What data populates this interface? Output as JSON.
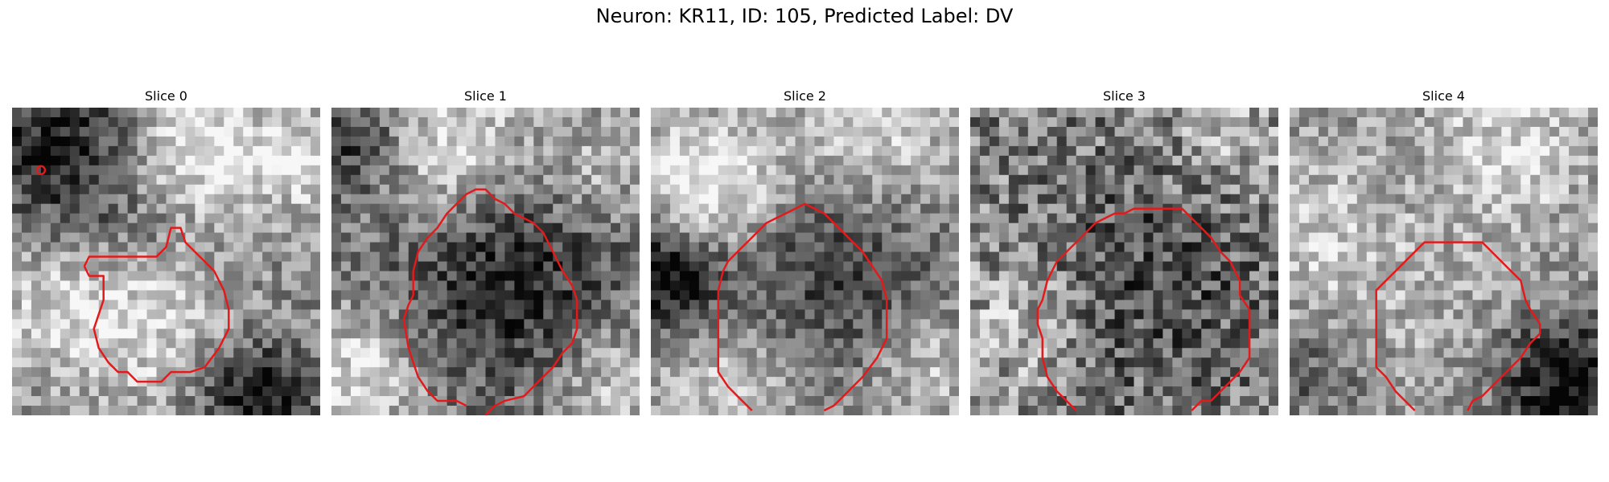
{
  "figure": {
    "title": "Neuron: KR11, ID: 105, Predicted Label: DV"
  },
  "panels": [
    {
      "title": "Slice 0"
    },
    {
      "title": "Slice 1"
    },
    {
      "title": "Slice 2"
    },
    {
      "title": "Slice 3"
    },
    {
      "title": "Slice 4"
    }
  ],
  "colors": {
    "contour": "#e31a1c",
    "colormap": "grayscale"
  }
}
